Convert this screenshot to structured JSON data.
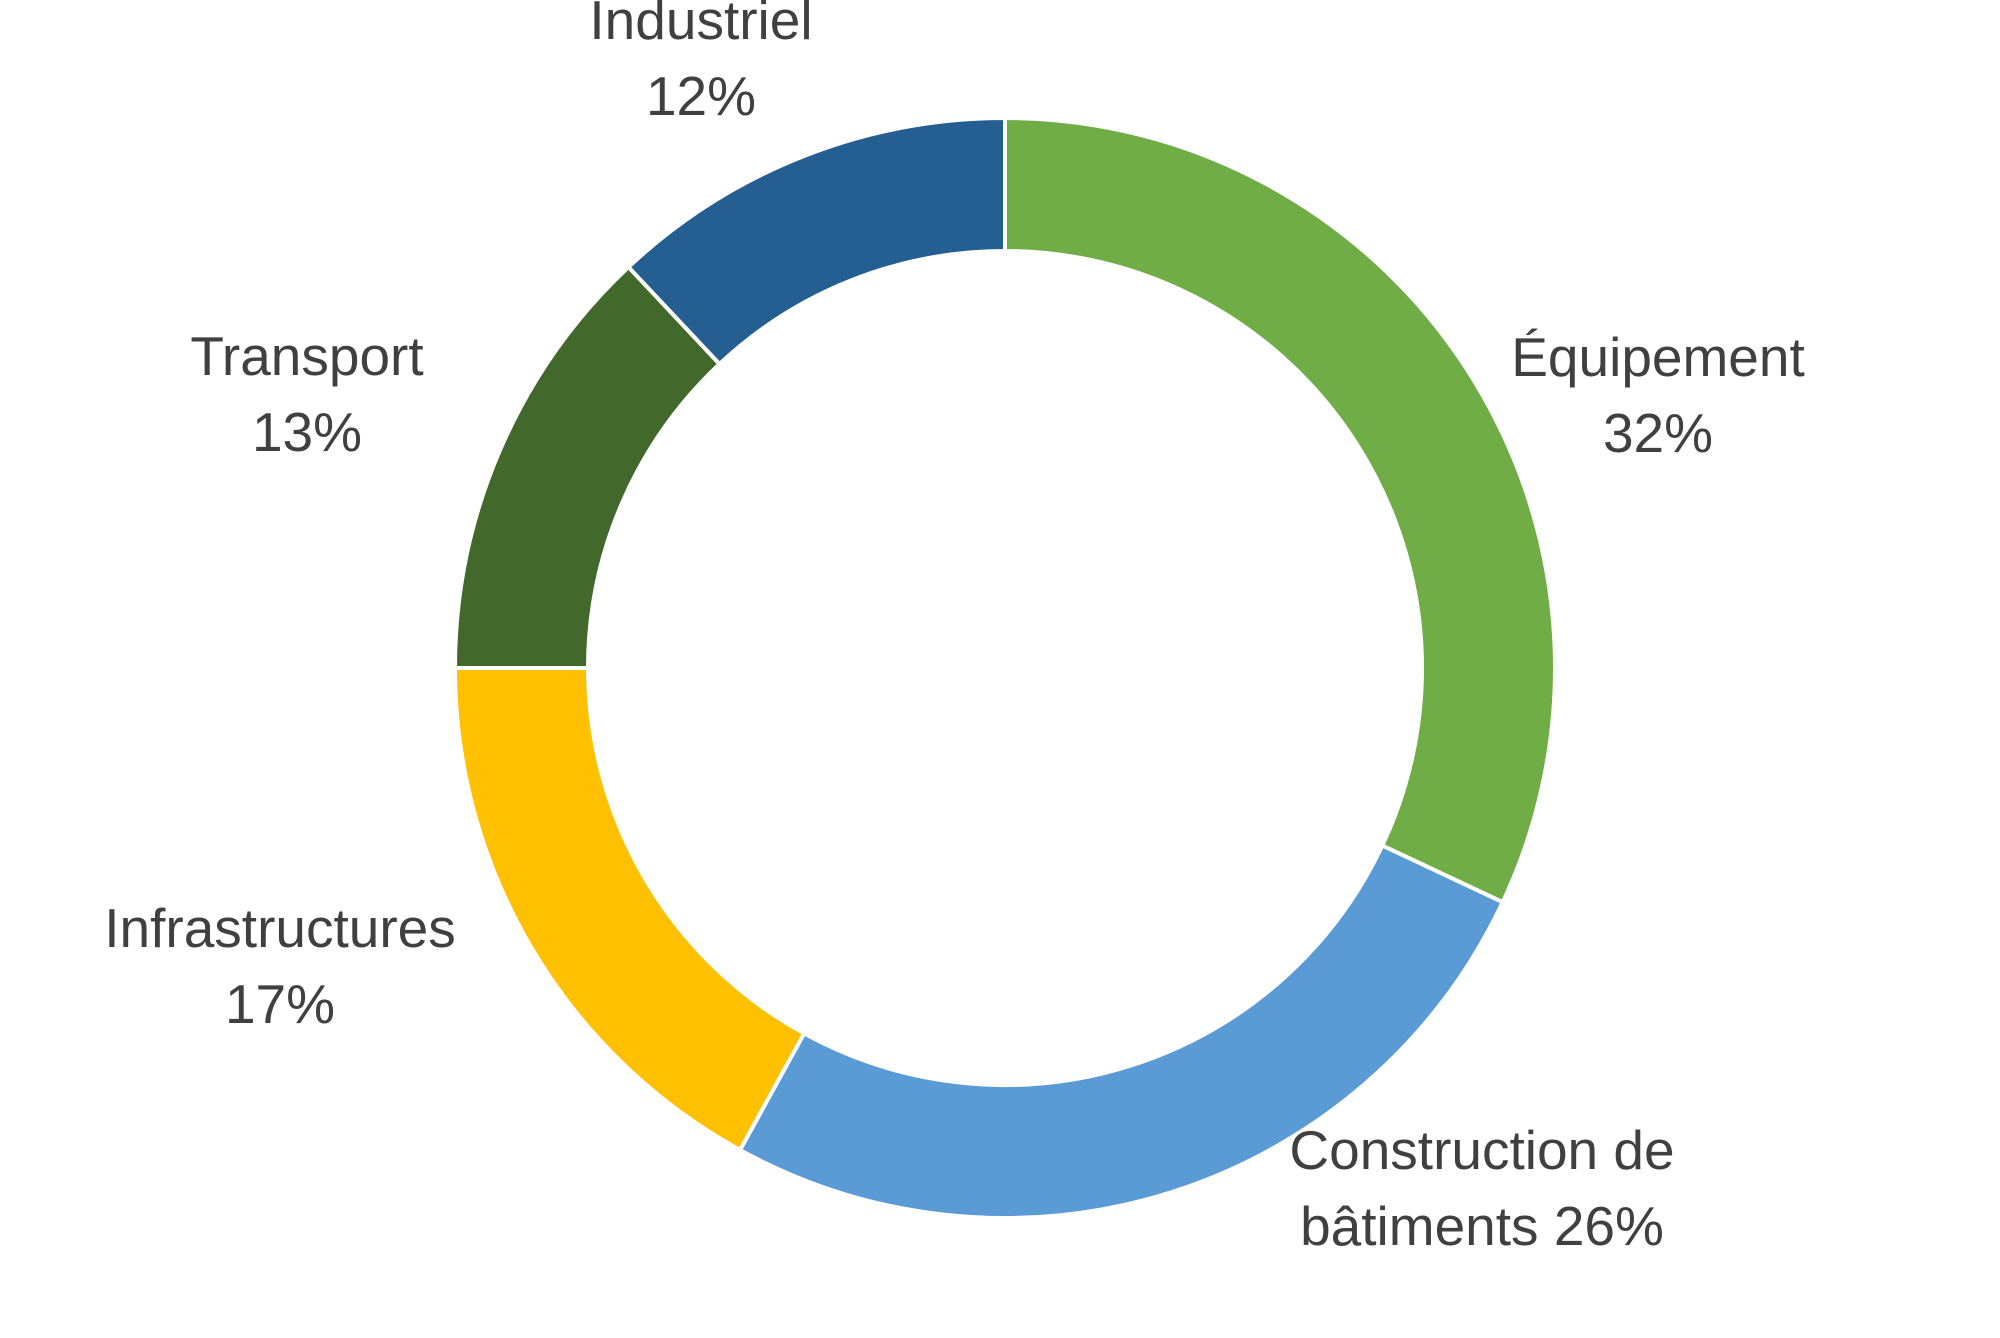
{
  "chart_data": {
    "type": "pie",
    "variant": "donut",
    "title": "",
    "unit": "%",
    "slices": [
      {
        "label": "Équipement",
        "value": 32,
        "display": "32%",
        "color": "#70AD47"
      },
      {
        "label": "Construction de bâtiments",
        "value": 26,
        "display": "26%",
        "color": "#5B9BD5"
      },
      {
        "label": "Infrastructures",
        "value": 17,
        "display": "17%",
        "color": "#FFC000"
      },
      {
        "label": "Transport",
        "value": 13,
        "display": "13%",
        "color": "#43682B"
      },
      {
        "label": "Industriel",
        "value": 12,
        "display": "12%",
        "color": "#255E91"
      }
    ],
    "start_angle": "top (12 o'clock)",
    "direction": "clockwise",
    "legend": "none",
    "data_labels": "outside, category and percentage"
  }
}
